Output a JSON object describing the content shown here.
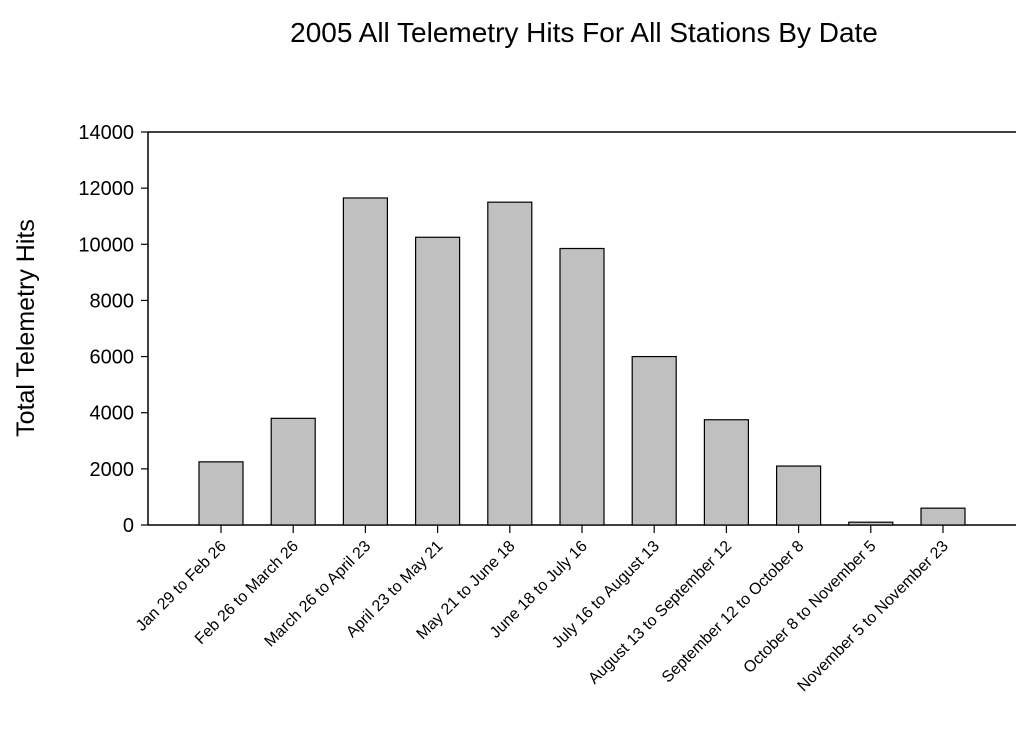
{
  "chart_data": {
    "type": "bar",
    "title": "2005 All Telemetry Hits For All Stations By Date",
    "xlabel": "",
    "ylabel": "Total Telemetry Hits",
    "ylim": [
      0,
      14000
    ],
    "yticks": [
      "0",
      "2000",
      "4000",
      "6000",
      "8000",
      "10000",
      "12000",
      "14000"
    ],
    "grid": false,
    "categories": [
      "Jan 29 to Feb 26",
      "Feb 26 to March 26",
      "March 26 to April 23",
      "April 23 to May 21",
      "May 21 to June 18",
      "June 18 to July 16",
      "July 16 to August 13",
      "August 13 to September 12",
      "September 12 to October 8",
      "October 8 to November 5",
      "November 5 to November 23"
    ],
    "values": [
      2250,
      3800,
      11650,
      10250,
      11500,
      9850,
      6000,
      3750,
      2100,
      100,
      600
    ],
    "colors": {
      "bar_fill": "#c0c0c0",
      "bar_stroke": "#000000",
      "axis": "#000000"
    }
  }
}
